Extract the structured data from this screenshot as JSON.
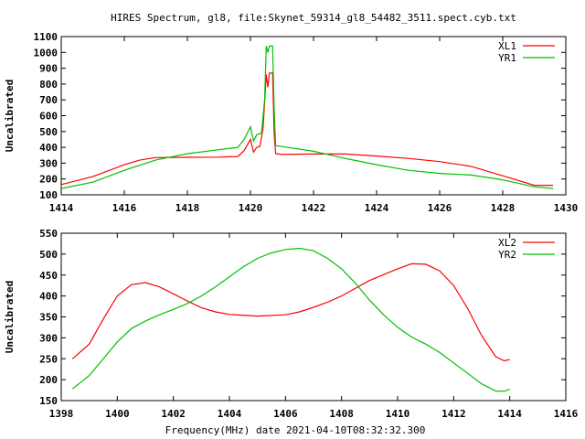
{
  "title": "HIRES Spectrum, gl8, file:Skynet_59314_gl8_54482_3511.spect.cyb.txt",
  "xlabel": "Frequency(MHz) date 2021-04-10T08:32:32.300",
  "chart_data": [
    {
      "type": "line",
      "ylabel": "Uncalibrated",
      "xlim": [
        1414,
        1430
      ],
      "ylim": [
        100,
        1100
      ],
      "xticks": [
        1414,
        1416,
        1418,
        1420,
        1422,
        1424,
        1426,
        1428,
        1430
      ],
      "yticks": [
        100,
        200,
        300,
        400,
        500,
        600,
        700,
        800,
        900,
        1000,
        1100
      ],
      "legend": "top-right",
      "series": [
        {
          "name": "XL1",
          "color": "#ff0000",
          "x": [
            1414.0,
            1415,
            1416,
            1416.5,
            1417,
            1418,
            1419,
            1419.6,
            1419.8,
            1420.0,
            1420.1,
            1420.2,
            1420.3,
            1420.4,
            1420.5,
            1420.55,
            1420.6,
            1420.7,
            1420.75,
            1420.8,
            1421,
            1422,
            1423,
            1424,
            1425,
            1426,
            1427,
            1428,
            1429,
            1429.6
          ],
          "y": [
            165,
            215,
            290,
            320,
            335,
            337,
            338,
            342,
            380,
            450,
            370,
            400,
            405,
            520,
            860,
            780,
            870,
            870,
            490,
            360,
            355,
            358,
            358,
            345,
            330,
            310,
            280,
            220,
            160,
            160
          ]
        },
        {
          "name": "YR1",
          "color": "#00c000",
          "x": [
            1414.0,
            1415,
            1416,
            1417,
            1418,
            1419,
            1419.6,
            1419.8,
            1420.0,
            1420.1,
            1420.2,
            1420.35,
            1420.45,
            1420.5,
            1420.55,
            1420.6,
            1420.7,
            1420.75,
            1420.8,
            1421,
            1422,
            1423,
            1424,
            1425,
            1426,
            1427,
            1428,
            1429,
            1429.6
          ],
          "y": [
            140,
            180,
            255,
            320,
            360,
            385,
            400,
            450,
            530,
            440,
            480,
            490,
            700,
            1040,
            1000,
            1040,
            1040,
            650,
            410,
            405,
            375,
            330,
            290,
            255,
            235,
            225,
            195,
            150,
            140
          ]
        }
      ]
    },
    {
      "type": "line",
      "ylabel": "Uncalibrated",
      "xlim": [
        1398,
        1416
      ],
      "ylim": [
        150,
        550
      ],
      "xticks": [
        1398,
        1400,
        1402,
        1404,
        1406,
        1408,
        1410,
        1412,
        1414,
        1416
      ],
      "yticks": [
        150,
        200,
        250,
        300,
        350,
        400,
        450,
        500,
        550
      ],
      "legend": "top-right",
      "series": [
        {
          "name": "XL2",
          "color": "#ff0000",
          "x": [
            1398.4,
            1399,
            1399.5,
            1400,
            1400.5,
            1401,
            1401.5,
            1402,
            1402.5,
            1403,
            1403.5,
            1404,
            1405,
            1406,
            1406.5,
            1407,
            1407.5,
            1408,
            1409,
            1410,
            1410.5,
            1411,
            1411.5,
            1412,
            1412.5,
            1413,
            1413.5,
            1413.8,
            1414
          ],
          "y": [
            250,
            285,
            345,
            400,
            427,
            432,
            422,
            405,
            388,
            372,
            362,
            356,
            352,
            355,
            362,
            373,
            385,
            400,
            437,
            465,
            477,
            476,
            460,
            425,
            370,
            305,
            255,
            245,
            248
          ]
        },
        {
          "name": "YR2",
          "color": "#00c000",
          "x": [
            1398.4,
            1399,
            1399.5,
            1400,
            1400.5,
            1401,
            1401.5,
            1402,
            1402.5,
            1403,
            1403.5,
            1404,
            1404.5,
            1405,
            1405.5,
            1406,
            1406.5,
            1407,
            1407.5,
            1408,
            1408.5,
            1409,
            1409.5,
            1410,
            1410.5,
            1411,
            1411.5,
            1412,
            1412.5,
            1413,
            1413.5,
            1413.8,
            1414
          ],
          "y": [
            178,
            210,
            250,
            290,
            322,
            340,
            355,
            368,
            382,
            400,
            422,
            446,
            470,
            490,
            503,
            511,
            514,
            508,
            490,
            465,
            430,
            390,
            355,
            325,
            302,
            285,
            265,
            240,
            215,
            190,
            173,
            172,
            177
          ]
        }
      ]
    }
  ]
}
